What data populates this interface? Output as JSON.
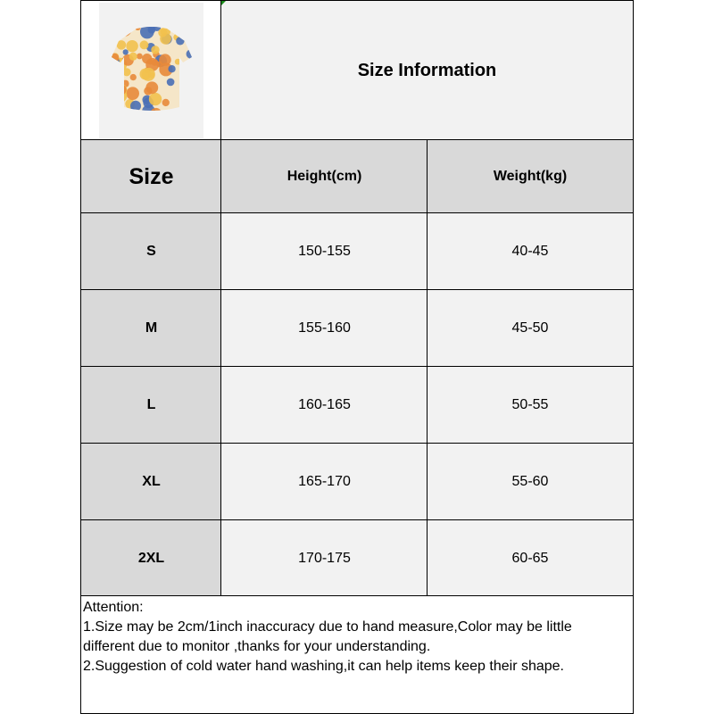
{
  "title": "Size Information",
  "product_image": {
    "name": "floral-short-sleeve-shirt",
    "colors": [
      "#f2c14e",
      "#4a6fb5",
      "#e8893a",
      "#f5e6c8"
    ]
  },
  "table": {
    "headers": [
      "Size",
      "Height(cm)",
      "Weight(kg)"
    ],
    "rows": [
      [
        "S",
        "150-155",
        "40-45"
      ],
      [
        "M",
        "155-160",
        "45-50"
      ],
      [
        "L",
        "160-165",
        "50-55"
      ],
      [
        "XL",
        "165-170",
        "55-60"
      ],
      [
        "2XL",
        "170-175",
        "60-65"
      ]
    ]
  },
  "notes": {
    "heading": "Attention:",
    "lines": [
      "1.Size may be 2cm/1inch inaccuracy due to hand measure,Color may be little",
      "different due to monitor ,thanks for your understanding.",
      "2.Suggestion of cold water hand washing,it can help items keep their shape."
    ]
  },
  "colors": {
    "header_bg": "#d9d9d9",
    "cell_bg": "#f2f2f2",
    "border": "#000000"
  }
}
